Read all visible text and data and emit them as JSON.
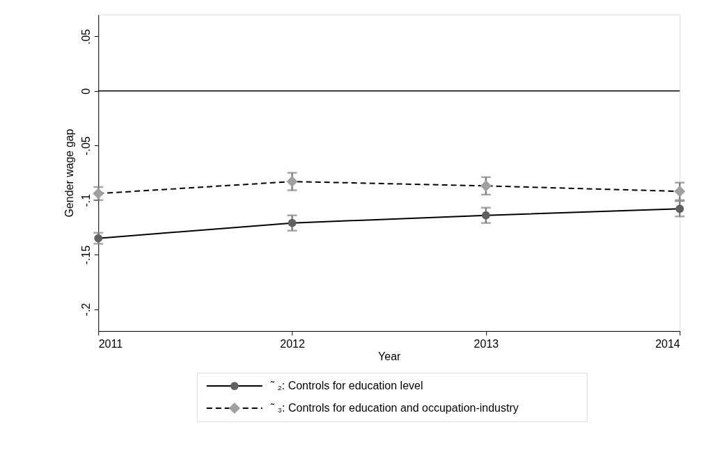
{
  "chart_data": {
    "type": "line",
    "xlabel": "Year",
    "ylabel": "Gender wage gap",
    "x": [
      2011,
      2012,
      2013,
      2014
    ],
    "series": [
      {
        "name": "˜ ₂: Controls for education level",
        "color": "#606060",
        "marker": "circle",
        "line_style": "solid",
        "values": [
          -0.135,
          -0.121,
          -0.114,
          -0.108
        ],
        "errors": [
          0.005,
          0.007,
          0.007,
          0.007
        ]
      },
      {
        "name": "˜ ₃: Controls for education and occupation-industry",
        "color": "#a0a0a0",
        "marker": "diamond",
        "line_style": "dashed",
        "values": [
          -0.094,
          -0.083,
          -0.087,
          -0.092
        ],
        "errors": [
          0.006,
          0.008,
          0.008,
          0.008
        ]
      }
    ],
    "xlim": [
      2011,
      2014
    ],
    "xticks": [
      2011,
      2012,
      2013,
      2014
    ],
    "ylim": [
      -0.22,
      0.07
    ],
    "yticks": [
      {
        "value": 0.05,
        "label": ".05"
      },
      0,
      {
        "value": -0.05,
        "label": "-.05"
      },
      {
        "value": -0.1,
        "label": "-.1"
      },
      {
        "value": -0.15,
        "label": "-.15"
      },
      {
        "value": -0.2,
        "label": "-.2"
      }
    ],
    "ref_lines": [
      {
        "axis": "y",
        "value": 0,
        "color": "#000000"
      }
    ],
    "grid": false,
    "legend": "bottom"
  }
}
